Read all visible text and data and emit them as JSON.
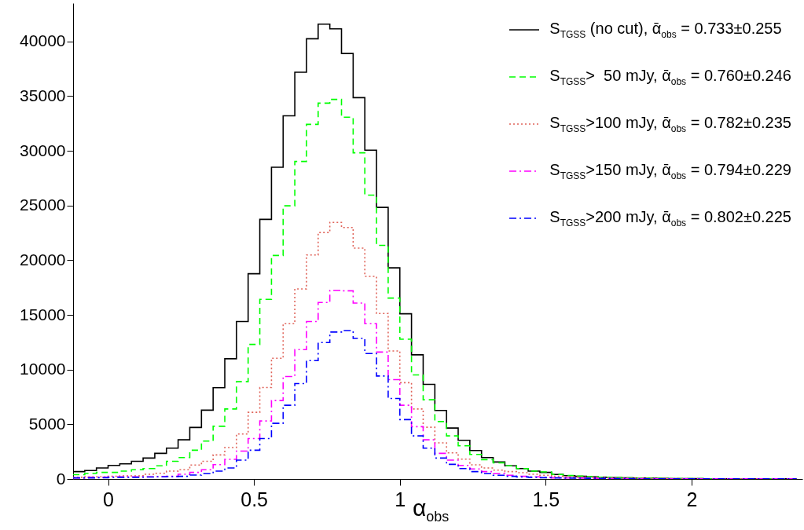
{
  "chart_data": {
    "type": "histogram",
    "xlabel": "α$_{obs}$",
    "legend": "top right",
    "xlim": [
      -0.12,
      2.38
    ],
    "ylim": [
      0,
      43500
    ],
    "xticks": [
      0,
      0.5,
      1,
      1.5,
      2
    ],
    "yticks": [
      0,
      5000,
      10000,
      15000,
      20000,
      25000,
      30000,
      35000,
      40000
    ],
    "bins": [
      -0.12,
      -0.08,
      -0.04,
      0,
      0.04,
      0.08,
      0.12,
      0.16,
      0.2,
      0.24,
      0.28,
      0.32,
      0.36,
      0.4,
      0.44,
      0.48,
      0.52,
      0.56,
      0.6,
      0.64,
      0.68,
      0.72,
      0.76,
      0.8,
      0.84,
      0.88,
      0.92,
      0.96,
      1,
      1.04,
      1.08,
      1.12,
      1.16,
      1.2,
      1.24,
      1.28,
      1.32,
      1.36,
      1.4,
      1.44,
      1.48,
      1.52,
      1.56,
      1.6,
      1.64,
      1.68,
      1.72,
      1.76,
      1.8,
      1.84,
      1.88,
      1.92,
      1.96,
      2,
      2.04,
      2.08,
      2.12,
      2.16,
      2.2,
      2.24,
      2.28,
      2.32,
      2.36
    ],
    "series": [
      {
        "name": "S$_{TGSS}$ (no cut), ᾱ$_{obs}$ = 0.733±0.255",
        "color": "#000000",
        "line_style": "solid",
        "values": [
          670,
          770,
          1000,
          1240,
          1380,
          1620,
          1910,
          2340,
          2820,
          3580,
          4710,
          6290,
          8340,
          10990,
          14390,
          18760,
          23730,
          28500,
          33200,
          37180,
          40240,
          41580,
          41150,
          38900,
          34860,
          30060,
          24830,
          19300,
          15100,
          11350,
          8650,
          6260,
          4660,
          3530,
          2600,
          1960,
          1550,
          1200,
          950,
          720,
          600,
          410,
          300,
          240,
          200,
          150,
          120,
          100,
          80,
          60,
          50,
          40,
          30,
          30,
          20,
          20,
          20,
          10,
          10,
          10,
          10,
          10
        ]
      },
      {
        "name": "S$_{TGSS}$>  50 mJy, ᾱ$_{obs}$ = 0.760±0.246",
        "color": "#00ff00",
        "line_style": "dashed",
        "values": [
          400,
          500,
          600,
          600,
          720,
          840,
          950,
          1200,
          1620,
          1960,
          2630,
          3460,
          4820,
          6400,
          8890,
          12300,
          16420,
          20430,
          24970,
          29030,
          32420,
          34360,
          34700,
          33070,
          29820,
          25950,
          21360,
          16540,
          12780,
          9510,
          7240,
          5250,
          3940,
          3030,
          2240,
          1770,
          1480,
          1200,
          950,
          720,
          650,
          410,
          320,
          260,
          210,
          160,
          130,
          100,
          80,
          60,
          50,
          40,
          30,
          30,
          20,
          20,
          20,
          10,
          10,
          10,
          10,
          10
        ]
      },
      {
        "name": "S$_{TGSS}$>100 mJy, ᾱ$_{obs}$ = 0.782±0.235",
        "color": "#e0645a",
        "line_style": "dotted",
        "values": [
          150,
          200,
          200,
          250,
          290,
          290,
          430,
          520,
          720,
          840,
          1270,
          1620,
          2200,
          2870,
          4110,
          6090,
          8360,
          11040,
          14200,
          17370,
          20480,
          22530,
          23460,
          22990,
          21100,
          18520,
          15130,
          11700,
          8800,
          6400,
          4730,
          3300,
          2390,
          1810,
          1290,
          1000,
          810,
          670,
          570,
          430,
          340,
          240,
          200,
          170,
          140,
          110,
          90,
          70,
          60,
          50,
          40,
          30,
          20,
          20,
          20,
          10,
          10,
          10,
          10,
          10,
          10,
          10
        ]
      },
      {
        "name": "S$_{TGSS}$>150 mJy, ᾱ$_{obs}$ = 0.794±0.229",
        "color": "#ff00ff",
        "line_style": "dashdot",
        "values": [
          100,
          150,
          150,
          200,
          200,
          200,
          200,
          220,
          240,
          430,
          600,
          840,
          1310,
          1790,
          2550,
          3700,
          5300,
          7170,
          9370,
          11830,
          14390,
          16130,
          17250,
          17200,
          16080,
          14200,
          11600,
          9080,
          6740,
          4780,
          3580,
          2340,
          1720,
          1240,
          910,
          670,
          480,
          340,
          240,
          200,
          150,
          100,
          90,
          80,
          60,
          50,
          40,
          30,
          30,
          20,
          20,
          20,
          10,
          10,
          10,
          10,
          10,
          10,
          10,
          10,
          10,
          10
        ]
      },
      {
        "name": "S$_{TGSS}$>200 mJy, ᾱ$_{obs}$ = 0.802±0.225",
        "color": "#0000ff",
        "line_style": "dashdot",
        "values": [
          100,
          100,
          120,
          150,
          150,
          150,
          180,
          200,
          220,
          240,
          360,
          480,
          720,
          1000,
          1720,
          2630,
          3700,
          5090,
          6740,
          8720,
          10820,
          12470,
          13430,
          13570,
          12850,
          11470,
          9410,
          7360,
          5430,
          3940,
          2820,
          1910,
          1340,
          950,
          670,
          480,
          340,
          240,
          190,
          150,
          120,
          100,
          80,
          70,
          60,
          50,
          40,
          30,
          20,
          20,
          20,
          10,
          10,
          10,
          10,
          10,
          10,
          10,
          10,
          10,
          10,
          10
        ]
      }
    ]
  }
}
